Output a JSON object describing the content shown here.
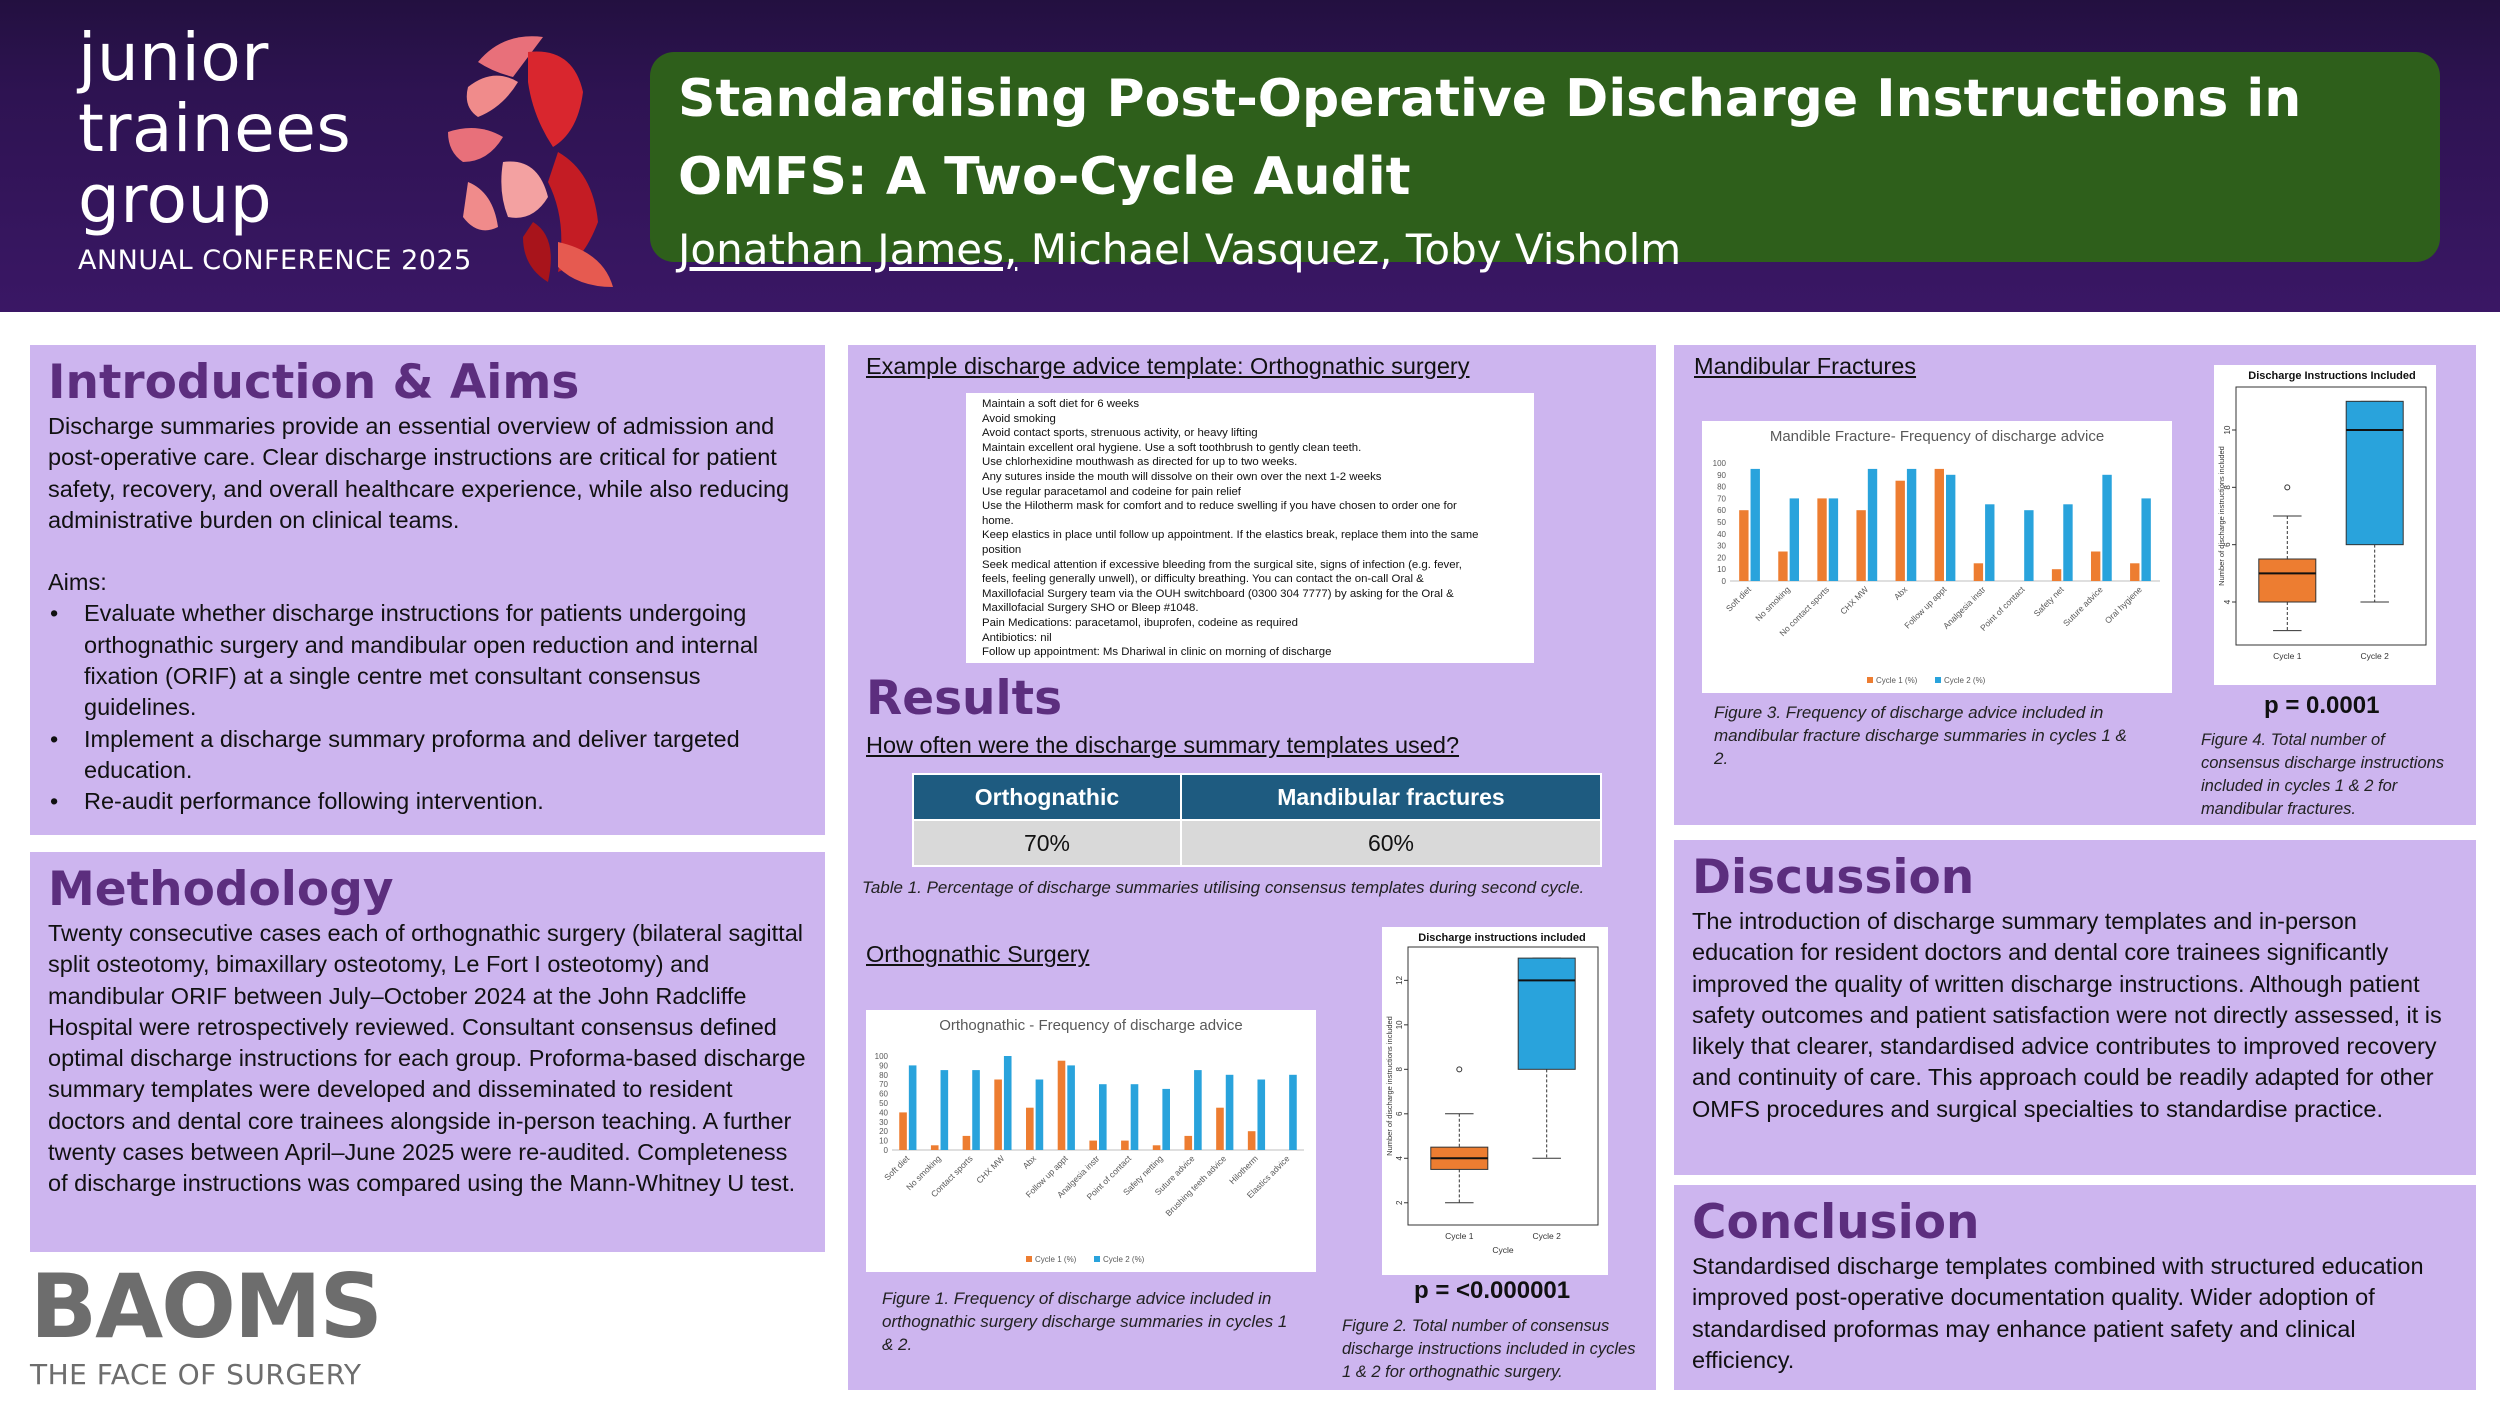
{
  "header": {
    "brand_lines": [
      "junior",
      "trainees",
      "group"
    ],
    "conference": "ANNUAL CONFERENCE 2025",
    "title_line1": "Standardising Post-Operative Discharge Instructions in",
    "title_line2": "OMFS: A Two-Cycle Audit",
    "lead_author": "Jonathan James,",
    "other_authors": " Michael Vasquez, Toby Visholm"
  },
  "intro": {
    "heading": "Introduction & Aims",
    "paragraph": "Discharge summaries provide an essential overview of admission and post-operative care. Clear discharge instructions are critical for patient safety, recovery, and overall healthcare experience, while also reducing administrative burden on clinical teams.",
    "aims_label": "Aims:",
    "aims": [
      "Evaluate whether discharge instructions for patients undergoing orthognathic surgery and mandibular open reduction and internal fixation (ORIF) at a single centre met consultant consensus guidelines.",
      "Implement a discharge summary proforma and deliver targeted education.",
      "Re-audit performance following intervention."
    ]
  },
  "methodology": {
    "heading": "Methodology",
    "paragraph": "Twenty consecutive cases each of orthognathic surgery (bilateral sagittal split osteotomy, bimaxillary osteotomy, Le Fort I osteotomy) and mandibular ORIF between July–October 2024 at the John Radcliffe Hospital were retrospectively reviewed. Consultant consensus defined optimal discharge instructions for each group. Proforma-based discharge summary templates were developed and disseminated to resident doctors and dental core trainees alongside in-person teaching. A further twenty cases between April–June 2025 were re-audited. Completeness of discharge instructions was compared using the Mann-Whitney U test."
  },
  "baoms": {
    "logo": "BAOMS",
    "tagline": "THE FACE OF SURGERY"
  },
  "template": {
    "heading": "Example discharge advice template: Orthognathic surgery",
    "lines": [
      "Maintain a soft diet for 6 weeks",
      "Avoid smoking",
      "Avoid contact sports, strenuous activity, or heavy lifting",
      "Maintain excellent oral hygiene. Use a soft toothbrush to gently clean teeth.",
      "Use chlorhexidine mouthwash as directed for up to two weeks.",
      "Any sutures inside the mouth will dissolve on their own over the next 1-2 weeks",
      "Use regular paracetamol and codeine for pain relief",
      "Use the Hilotherm mask for comfort and to reduce swelling if you have chosen to order one for",
      "home.",
      "Keep elastics in place until follow up appointment. If the elastics break, replace them into the same",
      "position",
      "Seek medical attention if excessive bleeding from the surgical site, signs of infection (e.g. fever,",
      "feels, feeling generally unwell), or difficulty breathing. You can contact the on-call Oral &",
      "Maxillofacial Surgery team via the OUH switchboard (0300 304 7777) by asking for the Oral &",
      "Maxillofacial Surgery SHO or Bleep #1048.",
      "Pain Medications: paracetamol, ibuprofen, codeine as required",
      "Antibiotics: nil",
      "Follow up appointment: Ms Dhariwal in clinic on morning of discharge"
    ]
  },
  "results": {
    "heading": "Results",
    "usage_question": "How often were the discharge summary templates used?",
    "table_headers": [
      "Orthognathic",
      "Mandibular fractures"
    ],
    "table_values": [
      "70%",
      "60%"
    ],
    "table_caption": "Table 1. Percentage of discharge summaries utilising consensus templates during second cycle.",
    "ortho_heading": "Orthognathic Surgery",
    "fig1_caption": "Figure 1. Frequency of discharge advice included in orthognathic surgery discharge summaries in cycles 1 & 2.",
    "fig2_caption": "Figure 2. Total number of consensus discharge instructions included in cycles 1 & 2 for orthognathic surgery.",
    "fig2_p": "p = <0.000001",
    "mand_heading": "Mandibular Fractures",
    "fig3_caption": "Figure 3. Frequency of discharge advice included in mandibular fracture discharge summaries in cycles 1 & 2.",
    "fig4_caption": "Figure 4. Total number of consensus discharge instructions included in cycles 1 & 2 for mandibular fractures.",
    "fig4_p": "p = 0.0001"
  },
  "discussion": {
    "heading": "Discussion",
    "paragraph": "The introduction of discharge summary templates and in-person education for resident doctors and dental core trainees significantly improved the quality of written discharge instructions. Although patient safety outcomes and patient satisfaction were not directly assessed, it is likely that clearer, standardised advice contributes to improved recovery and continuity of care. This approach could be readily adapted for other OMFS procedures and surgical specialties to standardise practice."
  },
  "conclusion": {
    "heading": "Conclusion",
    "paragraph": "Standardised discharge templates combined with structured education improved post-operative documentation quality. Wider adoption of standardised proformas may enhance patient safety and clinical efficiency."
  },
  "colors": {
    "cycle1": "#ed7d31",
    "cycle2": "#29a3dc",
    "panel": "#cdb5ef",
    "header": "#2e1352",
    "title_box": "#2e5f1b",
    "heading": "#5c2e7e",
    "table_header": "#1e5b80"
  },
  "chart_data": [
    {
      "id": "fig1",
      "type": "bar",
      "title": "Orthognathic - Frequency of discharge advice",
      "categories": [
        "Soft diet",
        "No smoking",
        "Contact sports",
        "CHX MW",
        "Abx",
        "Follow up appt",
        "Analgesia instr",
        "Point of contact",
        "Safety netting",
        "Suture advice",
        "Brushing teeth advice",
        "Hilotherm",
        "Elastics advice"
      ],
      "series": [
        {
          "name": "Cycle 1 (%)",
          "values": [
            40,
            5,
            15,
            75,
            45,
            95,
            10,
            10,
            5,
            15,
            45,
            20,
            0
          ]
        },
        {
          "name": "Cycle 2 (%)",
          "values": [
            90,
            85,
            85,
            100,
            75,
            90,
            70,
            70,
            65,
            85,
            80,
            75,
            80
          ]
        }
      ],
      "yticks": [
        0,
        10,
        20,
        30,
        40,
        50,
        60,
        70,
        80,
        90,
        100
      ],
      "ylim": [
        0,
        100
      ],
      "legend": "bottom"
    },
    {
      "id": "fig3",
      "type": "bar",
      "title": "Mandible Fracture- Frequency of discharge advice",
      "categories": [
        "Soft diet",
        "No smoking",
        "No contact sports",
        "CHX MW",
        "Abx",
        "Follow up appt",
        "Analgesia instr",
        "Point of contact",
        "Safety net",
        "Suture advice",
        "Oral hygiene"
      ],
      "series": [
        {
          "name": "Cycle 1 (%)",
          "values": [
            60,
            25,
            70,
            60,
            85,
            95,
            15,
            0,
            10,
            25,
            15
          ]
        },
        {
          "name": "Cycle 2 (%)",
          "values": [
            95,
            70,
            70,
            95,
            95,
            90,
            65,
            60,
            65,
            90,
            70
          ]
        }
      ],
      "yticks": [
        0,
        10,
        20,
        30,
        40,
        50,
        60,
        70,
        80,
        90,
        100
      ],
      "ylim": [
        0,
        100
      ],
      "legend": "bottom"
    },
    {
      "id": "fig2",
      "type": "box",
      "title": "Discharge instructions included",
      "xlabel": "Cycle",
      "ylabel": "Number of discharge instructions included",
      "categories": [
        "Cycle 1",
        "Cycle 2"
      ],
      "boxes": [
        {
          "min": 2,
          "q1": 3.5,
          "median": 4,
          "q3": 4.5,
          "max": 6,
          "outliers": [
            8
          ]
        },
        {
          "min": 4,
          "q1": 8,
          "median": 12,
          "q3": 13,
          "max": 13,
          "outliers": []
        }
      ],
      "yticks": [
        2,
        4,
        6,
        8,
        10,
        12
      ],
      "ylim": [
        1,
        13.5
      ]
    },
    {
      "id": "fig4",
      "type": "box",
      "title": "Discharge Instructions Included",
      "xlabel": "",
      "ylabel": "Number of discharge instructions included",
      "categories": [
        "Cycle 1",
        "Cycle 2"
      ],
      "boxes": [
        {
          "min": 3,
          "q1": 4,
          "median": 5,
          "q3": 5.5,
          "max": 7,
          "outliers": [
            8
          ]
        },
        {
          "min": 4,
          "q1": 6,
          "median": 10,
          "q3": 11,
          "max": 11,
          "outliers": []
        }
      ],
      "yticks": [
        4,
        6,
        8,
        10
      ],
      "ylim": [
        2.5,
        11.5
      ]
    }
  ]
}
